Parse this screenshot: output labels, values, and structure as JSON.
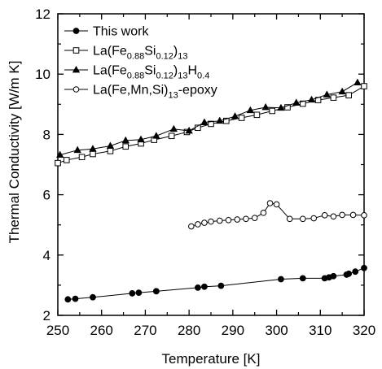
{
  "chart_data": {
    "type": "line",
    "xlabel": "Temperature [K]",
    "ylabel": "Thermal Conductivity [W/m K]",
    "xlim": [
      250,
      320
    ],
    "ylim": [
      2,
      12
    ],
    "xticks": [
      "250",
      "260",
      "270",
      "280",
      "290",
      "300",
      "310",
      "320"
    ],
    "yticks": [
      "2",
      "4",
      "6",
      "8",
      "10",
      "12"
    ],
    "grid": false,
    "legend_position": "top-left",
    "series": [
      {
        "name": "This work",
        "legend_parts": [
          {
            "t": "This work",
            "sub": false
          }
        ],
        "marker": "filled-circle",
        "color": "#000000",
        "x": [
          252.3,
          254,
          258,
          267,
          268.5,
          272.5,
          282,
          283.5,
          287.3,
          301,
          306,
          311,
          312,
          313,
          316,
          316.5,
          318,
          320
        ],
        "y": [
          2.53,
          2.55,
          2.6,
          2.73,
          2.75,
          2.8,
          2.92,
          2.95,
          2.98,
          3.2,
          3.23,
          3.23,
          3.26,
          3.3,
          3.35,
          3.38,
          3.45,
          3.57
        ]
      },
      {
        "name": "La(Fe0.88Si0.12)13",
        "legend_parts": [
          {
            "t": "La(Fe",
            "sub": false
          },
          {
            "t": "0.88",
            "sub": true
          },
          {
            "t": "Si",
            "sub": false
          },
          {
            "t": "0.12",
            "sub": true
          },
          {
            "t": ")",
            "sub": false
          },
          {
            "t": "13",
            "sub": true
          }
        ],
        "marker": "open-square",
        "color": "#000000",
        "x": [
          250,
          252,
          255.5,
          258,
          262,
          265.5,
          269,
          272,
          276,
          279.5,
          282,
          285,
          288.5,
          292,
          295.5,
          299,
          302.5,
          306,
          309.5,
          313,
          316.5,
          320
        ],
        "y": [
          7.05,
          7.15,
          7.25,
          7.35,
          7.45,
          7.6,
          7.7,
          7.82,
          7.95,
          8.08,
          8.22,
          8.35,
          8.45,
          8.55,
          8.65,
          8.78,
          8.9,
          9.02,
          9.14,
          9.22,
          9.3,
          9.6
        ]
      },
      {
        "name": "La(Fe0.88Si0.12)13H0.4",
        "legend_parts": [
          {
            "t": "La(Fe",
            "sub": false
          },
          {
            "t": "0.88",
            "sub": true
          },
          {
            "t": "Si",
            "sub": false
          },
          {
            "t": "0.12",
            "sub": true
          },
          {
            "t": ")",
            "sub": false
          },
          {
            "t": "13",
            "sub": true
          },
          {
            "t": "H",
            "sub": false
          },
          {
            "t": "0.4",
            "sub": true
          }
        ],
        "marker": "filled-triangle",
        "color": "#000000",
        "x": [
          250.5,
          254.5,
          258,
          262,
          265.5,
          269,
          272.5,
          276.5,
          280,
          283.5,
          287,
          290.5,
          294,
          297.5,
          301,
          304.5,
          308,
          311.5,
          315,
          318.5
        ],
        "y": [
          7.32,
          7.48,
          7.52,
          7.62,
          7.8,
          7.83,
          7.95,
          8.18,
          8.12,
          8.4,
          8.45,
          8.6,
          8.8,
          8.9,
          8.88,
          9.05,
          9.15,
          9.32,
          9.42,
          9.72
        ]
      },
      {
        "name": "La(Fe,Mn,Si)13-epoxy",
        "legend_parts": [
          {
            "t": "La(Fe,Mn,Si)",
            "sub": false
          },
          {
            "t": "13",
            "sub": true
          },
          {
            "t": "-epoxy",
            "sub": false
          }
        ],
        "marker": "open-circle",
        "color": "#000000",
        "x": [
          280.5,
          282,
          283.5,
          285,
          287,
          289,
          291,
          293,
          295,
          297,
          298.5,
          300,
          303,
          306,
          308.5,
          311,
          313,
          315,
          317.5,
          320
        ],
        "y": [
          4.95,
          5.02,
          5.07,
          5.11,
          5.14,
          5.16,
          5.18,
          5.2,
          5.23,
          5.4,
          5.72,
          5.68,
          5.2,
          5.2,
          5.22,
          5.32,
          5.28,
          5.33,
          5.33,
          5.32
        ]
      }
    ]
  }
}
